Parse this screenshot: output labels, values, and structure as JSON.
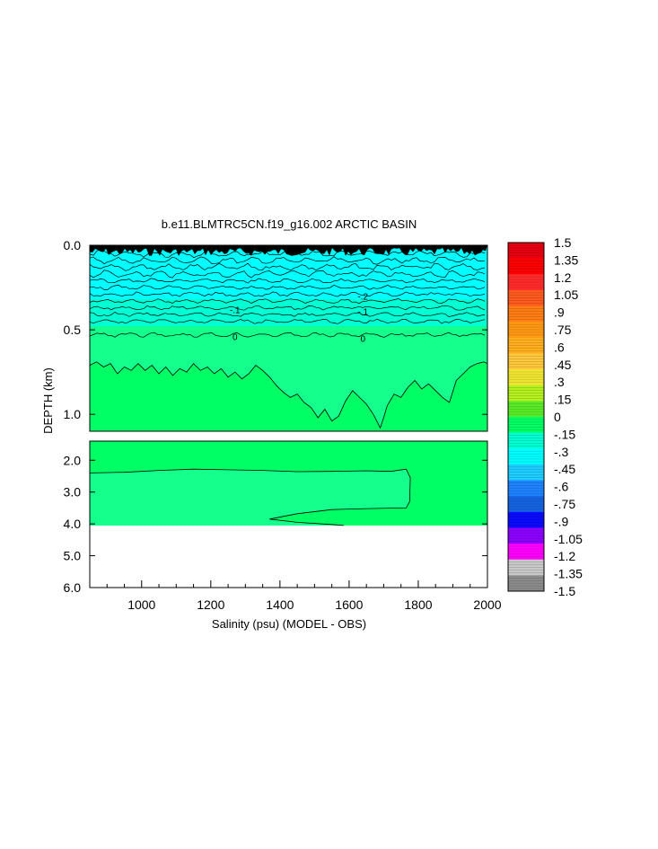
{
  "chart_data": {
    "type": "heatmap",
    "title": "b.e11.BLMTRC5CN.f19_g16.002 ARCTIC BASIN",
    "xlabel": "Salinity (psu) (MODEL - OBS)",
    "ylabel": "DEPTH (km)",
    "x_ticks": [
      "1000",
      "1200",
      "1400",
      "1600",
      "1800",
      "2000"
    ],
    "x_tick_values": [
      1000,
      1200,
      1400,
      1600,
      1800,
      2000
    ],
    "xlim": [
      850,
      2000
    ],
    "upper_panel": {
      "ylim": [
        0.0,
        1.1
      ],
      "y_ticks": [
        "0.0",
        "0.5",
        "1.0"
      ],
      "y_tick_values": [
        0.0,
        0.5,
        1.0
      ],
      "contour_labels": [
        {
          "text": "-.2",
          "x": 1640,
          "y": 0.3
        },
        {
          "text": "-.1",
          "x": 1270,
          "y": 0.38
        },
        {
          "text": "-.1",
          "x": 1640,
          "y": 0.39
        },
        {
          "text": "0",
          "x": 1270,
          "y": 0.54
        },
        {
          "text": "0",
          "x": 1640,
          "y": 0.55
        }
      ],
      "zero_to_015_boundary_depth_km": [
        [
          850,
          0.71
        ],
        [
          870,
          0.69
        ],
        [
          890,
          0.72
        ],
        [
          910,
          0.7
        ],
        [
          930,
          0.76
        ],
        [
          950,
          0.72
        ],
        [
          970,
          0.74
        ],
        [
          990,
          0.7
        ],
        [
          1010,
          0.74
        ],
        [
          1030,
          0.71
        ],
        [
          1050,
          0.76
        ],
        [
          1070,
          0.72
        ],
        [
          1090,
          0.77
        ],
        [
          1110,
          0.73
        ],
        [
          1130,
          0.75
        ],
        [
          1150,
          0.7
        ],
        [
          1170,
          0.74
        ],
        [
          1190,
          0.72
        ],
        [
          1210,
          0.76
        ],
        [
          1230,
          0.73
        ],
        [
          1250,
          0.78
        ],
        [
          1270,
          0.75
        ],
        [
          1290,
          0.79
        ],
        [
          1310,
          0.76
        ],
        [
          1330,
          0.71
        ],
        [
          1350,
          0.74
        ],
        [
          1370,
          0.78
        ],
        [
          1390,
          0.83
        ],
        [
          1410,
          0.87
        ],
        [
          1430,
          0.9
        ],
        [
          1450,
          0.88
        ],
        [
          1470,
          0.93
        ],
        [
          1490,
          0.96
        ],
        [
          1510,
          1.02
        ],
        [
          1530,
          0.97
        ],
        [
          1550,
          1.04
        ],
        [
          1570,
          1.01
        ],
        [
          1590,
          0.92
        ],
        [
          1610,
          0.86
        ],
        [
          1630,
          0.9
        ],
        [
          1650,
          0.94
        ],
        [
          1670,
          1.0
        ],
        [
          1690,
          1.08
        ],
        [
          1700,
          1.02
        ],
        [
          1710,
          0.95
        ],
        [
          1730,
          0.88
        ],
        [
          1750,
          0.9
        ],
        [
          1770,
          0.84
        ],
        [
          1790,
          0.8
        ],
        [
          1810,
          0.85
        ],
        [
          1830,
          0.82
        ],
        [
          1850,
          0.86
        ],
        [
          1870,
          0.9
        ],
        [
          1890,
          0.93
        ],
        [
          1910,
          0.8
        ],
        [
          1930,
          0.76
        ],
        [
          1950,
          0.72
        ],
        [
          1970,
          0.7
        ],
        [
          1990,
          0.69
        ],
        [
          2000,
          0.7
        ]
      ]
    },
    "lower_panel": {
      "ylim": [
        1.4,
        6.0
      ],
      "y_ticks": [
        "2.0",
        "3.0",
        "4.0",
        "5.0",
        "6.0"
      ],
      "y_tick_values": [
        2.0,
        3.0,
        4.0,
        5.0,
        6.0
      ],
      "data_bottom_depth_km": 4.05,
      "zero_contour_polygon": [
        [
          850,
          2.4
        ],
        [
          950,
          2.38
        ],
        [
          1050,
          2.32
        ],
        [
          1150,
          2.28
        ],
        [
          1250,
          2.3
        ],
        [
          1350,
          2.32
        ],
        [
          1450,
          2.36
        ],
        [
          1550,
          2.35
        ],
        [
          1650,
          2.33
        ],
        [
          1720,
          2.35
        ],
        [
          1765,
          2.28
        ],
        [
          1777,
          2.55
        ],
        [
          1775,
          3.3
        ],
        [
          1765,
          3.5
        ],
        [
          1650,
          3.52
        ],
        [
          1550,
          3.55
        ],
        [
          1450,
          3.68
        ],
        [
          1370,
          3.85
        ],
        [
          1450,
          3.95
        ],
        [
          1550,
          4.02
        ],
        [
          1585,
          4.05
        ]
      ]
    },
    "colorbar": {
      "labels": [
        "1.5",
        "1.35",
        "1.2",
        "1.05",
        ".9",
        ".75",
        ".6",
        ".45",
        ".3",
        ".15",
        "0",
        "-.15",
        "-.3",
        "-.45",
        "-.6",
        "-.75",
        "-.9",
        "-1.05",
        "-1.2",
        "-1.35",
        "-1.5"
      ],
      "levels": [
        1.5,
        1.35,
        1.2,
        1.05,
        0.9,
        0.75,
        0.6,
        0.45,
        0.3,
        0.15,
        0,
        -0.15,
        -0.3,
        -0.45,
        -0.6,
        -0.75,
        -0.9,
        -1.05,
        -1.2,
        -1.35,
        -1.5
      ],
      "colors": [
        "#e80010",
        "#ff0000",
        "#ff2a2a",
        "#ff5a1e",
        "#ff7d14",
        "#ff9914",
        "#ffaf1e",
        "#ffc83c",
        "#f0e632",
        "#b4f01e",
        "#5aeb28",
        "#00ff64",
        "#00ffd2",
        "#00ffff",
        "#1ecdff",
        "#1e82ff",
        "#1464e1",
        "#0a0aff",
        "#8c00ff",
        "#ff00ff",
        "#c8c8c8",
        "#8c8c8c"
      ]
    },
    "field_colors": {
      "zero_to_015": "#00ff64",
      "neg015_to_0": "#14ff8c",
      "surface_cyan": "#00ffff",
      "subsurface_cyan": "#00ffd2",
      "surface_noise": "#000000"
    }
  }
}
